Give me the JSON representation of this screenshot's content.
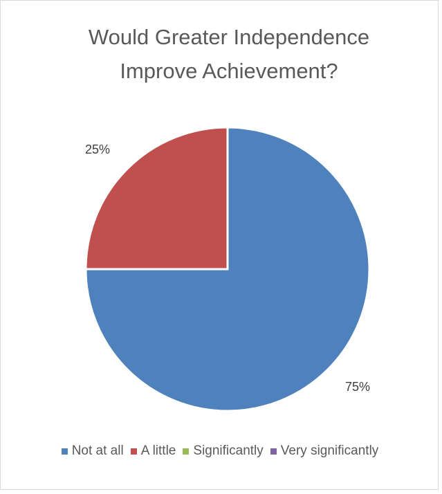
{
  "chart_data": {
    "type": "pie",
    "title_lines": [
      "Would Greater Independence",
      "Improve Achievement?"
    ],
    "categories": [
      "Not at all",
      "A little",
      "Significantly",
      "Very significantly"
    ],
    "values": [
      75,
      25,
      0,
      0
    ],
    "data_labels": [
      "75%",
      "25%",
      "",
      ""
    ],
    "colors": [
      "#4f81bd",
      "#c0504d",
      "#9bbb59",
      "#8064a2"
    ],
    "legend_position": "bottom",
    "start_angle_deg": 0,
    "direction": "clockwise"
  }
}
